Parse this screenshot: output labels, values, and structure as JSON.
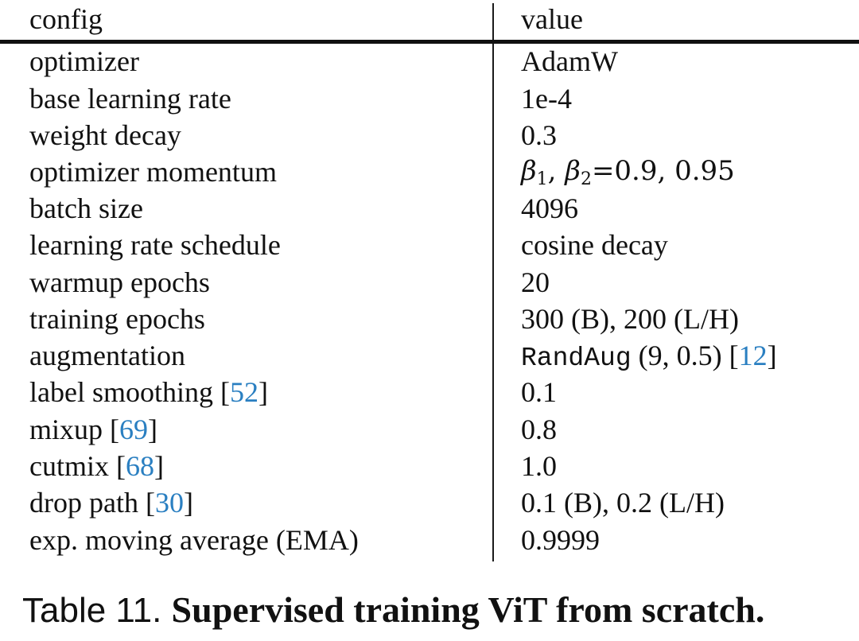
{
  "table": {
    "header": {
      "config": "config",
      "value": "value"
    },
    "rows": [
      {
        "config": "optimizer",
        "value": "AdamW"
      },
      {
        "config": "base learning rate",
        "value": "1e-4"
      },
      {
        "config": "weight decay",
        "value": "0.3"
      },
      {
        "config": "optimizer momentum",
        "value_math": {
          "b1": "β",
          "s1": "1",
          "sep": ", ",
          "b2": "β",
          "s2": "2",
          "rest": "=0.9, 0.95"
        }
      },
      {
        "config": "batch size",
        "value": "4096"
      },
      {
        "config": "learning rate schedule",
        "value": "cosine decay"
      },
      {
        "config": "warmup epochs",
        "value": "20"
      },
      {
        "config": "training epochs",
        "value": "300 (B), 200 (L/H)"
      },
      {
        "config": "augmentation",
        "value_mono": "RandAug",
        "value_rest": " (9, 0.5) [",
        "value_cite": "12",
        "value_close": "]"
      },
      {
        "config": "label smoothing [",
        "config_cite": "52",
        "config_close": "]",
        "value": "0.1"
      },
      {
        "config": "mixup [",
        "config_cite": "69",
        "config_close": "]",
        "value": "0.8"
      },
      {
        "config": "cutmix [",
        "config_cite": "68",
        "config_close": "]",
        "value": "1.0"
      },
      {
        "config": "drop path [",
        "config_cite": "30",
        "config_close": "]",
        "value": "0.1 (B), 0.2 (L/H)"
      },
      {
        "config": "exp. moving average (EMA)",
        "value": "0.9999"
      }
    ]
  },
  "caption": {
    "label": "Table 11. ",
    "title": "Supervised training ViT from scratch."
  },
  "colors": {
    "text": "#111111",
    "citation": "#2a7fc1",
    "rule": "#111111"
  }
}
